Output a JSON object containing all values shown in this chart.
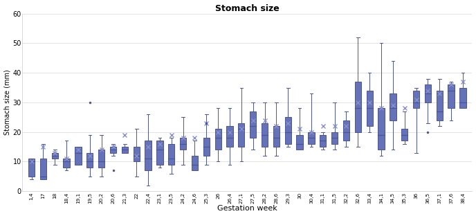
{
  "title": "Stomach size",
  "xlabel": "Gestation week",
  "ylabel": "Stomach size (mm)",
  "ylim": [
    0,
    60
  ],
  "yticks": [
    0,
    10,
    20,
    30,
    40,
    50,
    60
  ],
  "box_edge_color": "#4a5599",
  "box_face_color": "#6672b8",
  "whisker_color": "#4a5599",
  "median_color": "#4a5599",
  "flier_color": "#4a5599",
  "mean_color": "#8890cc",
  "categories": [
    "1,4",
    "17",
    "18",
    "18,4",
    "19,1",
    "19,5",
    "20,2",
    "20,6",
    "21,3",
    "22",
    "22,4",
    "23,1",
    "23,5",
    "24,2",
    "24,6",
    "25,3",
    "26",
    "26,4",
    "27,1",
    "27,5",
    "28,2",
    "28,6",
    "29,3",
    "30",
    "30,4",
    "31,1",
    "31,5",
    "32,2",
    "32,6",
    "33,4",
    "34,1",
    "34,5",
    "35,3",
    "36",
    "36,5",
    "37,1",
    "37,6",
    "38,4"
  ],
  "box_data": [
    {
      "q1": 5,
      "median": 10,
      "q3": 11,
      "mean": 10,
      "fliers": [],
      "whisker_lo": 4,
      "whisker_hi": 11
    },
    {
      "q1": 4,
      "median": 5,
      "q3": 11,
      "mean": 15,
      "fliers": [],
      "whisker_lo": 4,
      "whisker_hi": 16
    },
    {
      "q1": 11,
      "median": 12,
      "q3": 13,
      "mean": 13,
      "fliers": [],
      "whisker_lo": 9,
      "whisker_hi": 14
    },
    {
      "q1": 8,
      "median": 10,
      "q3": 11,
      "mean": 11,
      "fliers": [],
      "whisker_lo": 7,
      "whisker_hi": 17
    },
    {
      "q1": 9,
      "median": 13,
      "q3": 15,
      "mean": 14,
      "fliers": [],
      "whisker_lo": 9,
      "whisker_hi": 15
    },
    {
      "q1": 8,
      "median": 10,
      "q3": 13,
      "mean": 12,
      "fliers": [
        30
      ],
      "whisker_lo": 5,
      "whisker_hi": 19
    },
    {
      "q1": 8,
      "median": 10,
      "q3": 14,
      "mean": 14,
      "fliers": [],
      "whisker_lo": 5,
      "whisker_hi": 19
    },
    {
      "q1": 13,
      "median": 14,
      "q3": 15,
      "mean": 15,
      "fliers": [
        7
      ],
      "whisker_lo": 12,
      "whisker_hi": 16
    },
    {
      "q1": 13,
      "median": 14,
      "q3": 15,
      "mean": 19,
      "fliers": [],
      "whisker_lo": 13,
      "whisker_hi": 16
    },
    {
      "q1": 10,
      "median": 12,
      "q3": 15,
      "mean": 12,
      "fliers": [],
      "whisker_lo": 5,
      "whisker_hi": 21
    },
    {
      "q1": 7,
      "median": 11,
      "q3": 17,
      "mean": 15,
      "fliers": [],
      "whisker_lo": 2,
      "whisker_hi": 26
    },
    {
      "q1": 9,
      "median": 14,
      "q3": 17,
      "mean": 16,
      "fliers": [],
      "whisker_lo": 8,
      "whisker_hi": 18
    },
    {
      "q1": 9,
      "median": 11,
      "q3": 16,
      "mean": 19,
      "fliers": [],
      "whisker_lo": 6,
      "whisker_hi": 18
    },
    {
      "q1": 14,
      "median": 16,
      "q3": 18,
      "mean": 18,
      "fliers": [],
      "whisker_lo": 9,
      "whisker_hi": 25
    },
    {
      "q1": 7,
      "median": 9,
      "q3": 12,
      "mean": 18,
      "fliers": [],
      "whisker_lo": 7,
      "whisker_hi": 17
    },
    {
      "q1": 12,
      "median": 15,
      "q3": 18,
      "mean": 23,
      "fliers": [
        23
      ],
      "whisker_lo": 9,
      "whisker_hi": 26
    },
    {
      "q1": 14,
      "median": 18,
      "q3": 21,
      "mean": 20,
      "fliers": [],
      "whisker_lo": 10,
      "whisker_hi": 28
    },
    {
      "q1": 15,
      "median": 18,
      "q3": 22,
      "mean": 20,
      "fliers": [],
      "whisker_lo": 9,
      "whisker_hi": 28
    },
    {
      "q1": 15,
      "median": 21,
      "q3": 23,
      "mean": 21,
      "fliers": [],
      "whisker_lo": 10,
      "whisker_hi": 35
    },
    {
      "q1": 18,
      "median": 22,
      "q3": 27,
      "mean": 24,
      "fliers": [],
      "whisker_lo": 14,
      "whisker_hi": 30
    },
    {
      "q1": 15,
      "median": 19,
      "q3": 23,
      "mean": 24,
      "fliers": [],
      "whisker_lo": 12,
      "whisker_hi": 30
    },
    {
      "q1": 15,
      "median": 18,
      "q3": 22,
      "mean": 22,
      "fliers": [],
      "whisker_lo": 12,
      "whisker_hi": 30
    },
    {
      "q1": 16,
      "median": 20,
      "q3": 25,
      "mean": 23,
      "fliers": [],
      "whisker_lo": 15,
      "whisker_hi": 35
    },
    {
      "q1": 14,
      "median": 16,
      "q3": 19,
      "mean": 21,
      "fliers": [],
      "whisker_lo": 14,
      "whisker_hi": 28
    },
    {
      "q1": 16,
      "median": 18,
      "q3": 20,
      "mean": 20,
      "fliers": [],
      "whisker_lo": 15,
      "whisker_hi": 33
    },
    {
      "q1": 15,
      "median": 17,
      "q3": 19,
      "mean": 22,
      "fliers": [],
      "whisker_lo": 14,
      "whisker_hi": 20
    },
    {
      "q1": 16,
      "median": 18,
      "q3": 20,
      "mean": 22,
      "fliers": [],
      "whisker_lo": 14,
      "whisker_hi": 30
    },
    {
      "q1": 17,
      "median": 20,
      "q3": 24,
      "mean": 22,
      "fliers": [],
      "whisker_lo": 15,
      "whisker_hi": 27
    },
    {
      "q1": 20,
      "median": 28,
      "q3": 37,
      "mean": 30,
      "fliers": [],
      "whisker_lo": 15,
      "whisker_hi": 52
    },
    {
      "q1": 22,
      "median": 28,
      "q3": 34,
      "mean": 30,
      "fliers": [],
      "whisker_lo": 20,
      "whisker_hi": 40
    },
    {
      "q1": 14,
      "median": 19,
      "q3": 28,
      "mean": 28,
      "fliers": [],
      "whisker_lo": 12,
      "whisker_hi": 50
    },
    {
      "q1": 24,
      "median": 28,
      "q3": 33,
      "mean": 29,
      "fliers": [],
      "whisker_lo": 14,
      "whisker_hi": 44
    },
    {
      "q1": 17,
      "median": 19,
      "q3": 21,
      "mean": 28,
      "fliers": [],
      "whisker_lo": 16,
      "whisker_hi": 27
    },
    {
      "q1": 28,
      "median": 30,
      "q3": 34,
      "mean": 31,
      "fliers": [],
      "whisker_lo": 13,
      "whisker_hi": 35
    },
    {
      "q1": 30,
      "median": 33,
      "q3": 36,
      "mean": 34,
      "fliers": [
        20
      ],
      "whisker_lo": 23,
      "whisker_hi": 38
    },
    {
      "q1": 24,
      "median": 27,
      "q3": 34,
      "mean": 33,
      "fliers": [],
      "whisker_lo": 22,
      "whisker_hi": 38
    },
    {
      "q1": 28,
      "median": 34,
      "q3": 36,
      "mean": 36,
      "fliers": [],
      "whisker_lo": 24,
      "whisker_hi": 37
    },
    {
      "q1": 28,
      "median": 30,
      "q3": 35,
      "mean": 37,
      "fliers": [],
      "whisker_lo": 28,
      "whisker_hi": 40
    }
  ]
}
